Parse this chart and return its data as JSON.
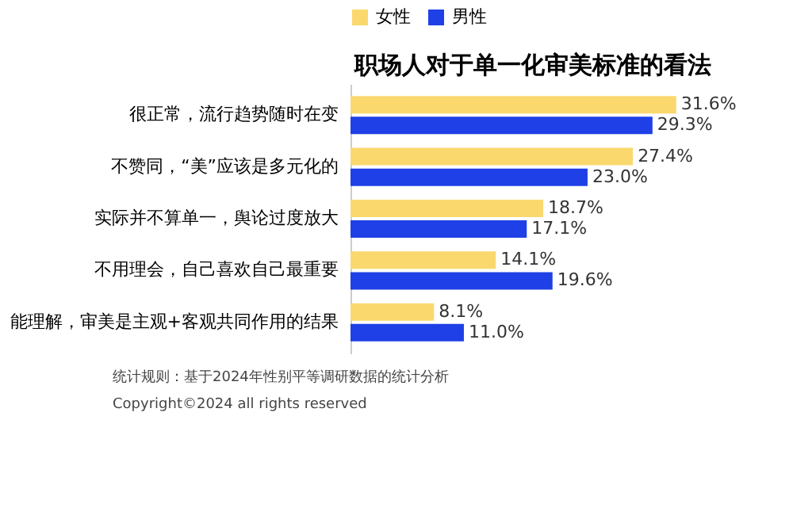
{
  "chart_data": {
    "type": "bar",
    "orientation": "horizontal",
    "title": "职场人对于单一化审美标准的看法",
    "categories": [
      "很正常，流行趋势随时在变",
      "不赞同，“美”应该是多元化的",
      "实际并不算单一，舆论过度放大",
      "不用理会，自己喜欢自己最重要",
      "能理解，审美是主观+客观共同作用的结果"
    ],
    "series": [
      {
        "name": "女性",
        "color": "#fad86e",
        "values": [
          31.6,
          27.4,
          18.7,
          14.1,
          8.1
        ],
        "value_labels": [
          "31.6%",
          "27.4%",
          "18.7%",
          "14.1%",
          "8.1%"
        ]
      },
      {
        "name": "男性",
        "color": "#1e40e6",
        "values": [
          29.3,
          23.0,
          17.1,
          19.6,
          11.0
        ],
        "value_labels": [
          "29.3%",
          "23.0%",
          "17.1%",
          "19.6%",
          "11.0%"
        ]
      }
    ],
    "legend": "top",
    "annotations": [
      "统计规则：基于2024年性别平等调研数据的统计分析",
      "Copyright©2024 all rights reserved"
    ]
  }
}
